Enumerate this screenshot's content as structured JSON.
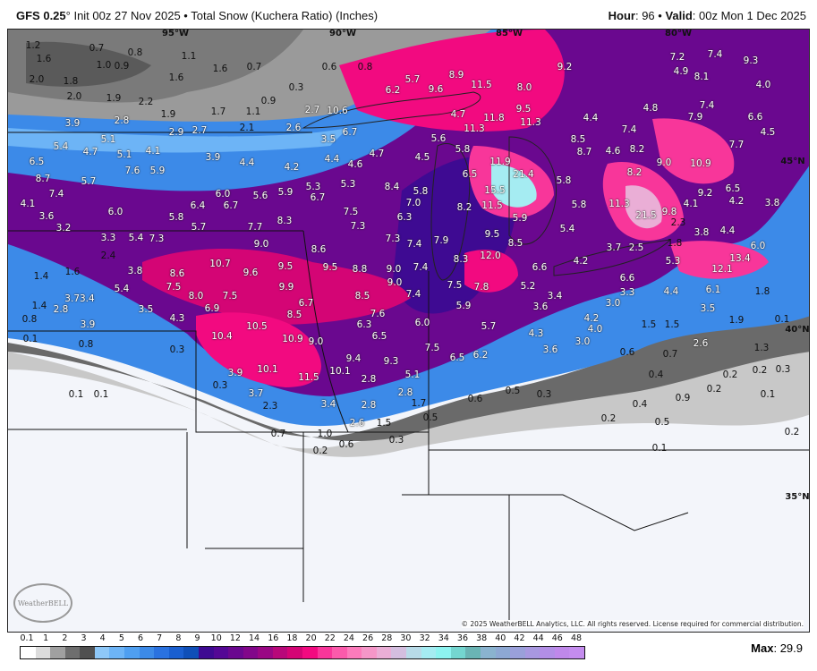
{
  "header": {
    "model": "GFS 0.25",
    "init": "° Init 00z 27 Nov 2025 • Total Snow (Kuchera Ratio) (Inches)",
    "hour_label": "Hour",
    "hour": ": 96 • ",
    "valid_label": "Valid",
    "valid": ": 00z Mon 1 Dec 2025"
  },
  "map": {
    "coords": [
      "95°W",
      "90°W",
      "85°W",
      "80°W",
      "45°N",
      "40°N",
      "35°N"
    ],
    "values": [
      "1.2",
      "1.6",
      "0.7",
      "1.0",
      "0.9",
      "0.8",
      "1.1",
      "1.6",
      "0.7",
      "0.6",
      "0.8",
      "0.3",
      "0.9",
      "1.1",
      "2.0",
      "1.8",
      "2.0",
      "1.9",
      "2.2",
      "1.6",
      "1.9",
      "1.7",
      "2.7",
      "2.1",
      "2.6",
      "2.9",
      "2.7",
      "3.9",
      "2.8",
      "5.4",
      "4.7",
      "5.1",
      "5.1",
      "4.1",
      "3.9",
      "4.4",
      "4.2",
      "3.5",
      "6.7",
      "4.4",
      "4.6",
      "4.7",
      "4.5",
      "5.6",
      "5.8",
      "6.5",
      "8.7",
      "5.7",
      "7.6",
      "5.9",
      "6.0",
      "5.6",
      "5.9",
      "5.3",
      "5.3",
      "8.4",
      "5.8",
      "6.5",
      "15.5",
      "11.9",
      "21.4",
      "5.8",
      "7.4",
      "4.1",
      "3.6",
      "6.0",
      "5.8",
      "6.4",
      "6.7",
      "6.7",
      "7.5",
      "7.0",
      "6.3",
      "8.2",
      "11.5",
      "5.9",
      "5.8",
      "3.2",
      "5.7",
      "7.7",
      "8.3",
      "7.3",
      "7.3",
      "7.4",
      "7.9",
      "9.5",
      "8.5",
      "5.4",
      "3.3",
      "5.4",
      "7.3",
      "9.0",
      "8.6",
      "2.4",
      "1.6",
      "3.8",
      "8.6",
      "10.7",
      "9.6",
      "9.5",
      "9.5",
      "8.8",
      "9.0",
      "7.4",
      "8.3",
      "12.0",
      "6.6",
      "1.4",
      "7.5",
      "9.9",
      "9.0",
      "7.5",
      "7.8",
      "5.2",
      "5.4",
      "8.0",
      "7.5",
      "6.7",
      "8.5",
      "7.4",
      "3.4",
      "3.73.4",
      "1.4",
      "2.8",
      "0.8",
      "3.5",
      "6.9",
      "8.5",
      "7.6",
      "5.9",
      "3.6",
      "4.3",
      "3.9",
      "10.5",
      "6.3",
      "6.0",
      "5.7",
      "4.2",
      "10.4",
      "10.9",
      "9.0",
      "6.5",
      "4.3",
      "4.0",
      "3.0",
      "0.1",
      "0.8",
      "0.3",
      "7.5",
      "3.6",
      "9.4",
      "9.3",
      "6.5",
      "6.2",
      "10.1",
      "3.9",
      "10.1",
      "11.5",
      "5.1",
      "0.3",
      "2.8",
      "3.7",
      "2.8",
      "0.5",
      "0.3",
      "0.1",
      "0.1",
      "2.3",
      "3.4",
      "2.8",
      "0.6",
      "1.7",
      "2.6",
      "1.5",
      "0.5",
      "0.7",
      "1.0",
      "0.6",
      "0.3",
      "0.2",
      "5.7",
      "6.2",
      "9.6",
      "8.9",
      "11.5",
      "8.0",
      "9.2",
      "7.2",
      "7.4",
      "9.3",
      "4.9",
      "8.1",
      "4.0",
      "10.6",
      "4.7",
      "11.8",
      "9.5",
      "11.3",
      "4.4",
      "4.8",
      "7.4",
      "7.9",
      "6.6",
      "11.3",
      "8.5",
      "8.7",
      "7.4",
      "4.5",
      "4.6",
      "8.2",
      "8.2",
      "9.0",
      "10.9",
      "7.7",
      "9.2",
      "6.5",
      "4.1",
      "4.2",
      "3.8",
      "11.3",
      "21.5",
      "9.8",
      "2.3",
      "3.8",
      "4.4",
      "1.8",
      "3.7",
      "2.5",
      "4.2",
      "5.3",
      "12.1",
      "13.4",
      "6.0",
      "6.6",
      "3.3",
      "3.0",
      "4.4",
      "6.1",
      "1.8",
      "3.5",
      "1.5",
      "1.5",
      "0.1",
      "1.9",
      "0.6",
      "2.6",
      "1.3",
      "0.7",
      "0.2",
      "0.2",
      "0.3",
      "0.4",
      "0.9",
      "0.2",
      "0.4",
      "0.1",
      "0.2",
      "0.5",
      "0.1",
      "0.2"
    ],
    "copyright": "© 2025 WeatherBELL Analytics, LLC. All rights reserved. License required for commercial distribution.",
    "logo": "WeatherBELL"
  },
  "legend": {
    "ticks": [
      "0.1",
      "1",
      "2",
      "3",
      "4",
      "5",
      "6",
      "7",
      "8",
      "9",
      "10",
      "12",
      "14",
      "16",
      "18",
      "20",
      "22",
      "24",
      "26",
      "28",
      "30",
      "32",
      "34",
      "36",
      "38",
      "40",
      "42",
      "44",
      "46",
      "48"
    ],
    "colors": [
      "#ffffff",
      "#dcdcdc",
      "#a0a0a0",
      "#6e6e6e",
      "#505050",
      "#8ec8f8",
      "#6db4f6",
      "#4f9ff0",
      "#3c8ae8",
      "#2a72e0",
      "#1a5fd0",
      "#0f4fb8",
      "#3e0a92",
      "#540895",
      "#6a088f",
      "#82078a",
      "#9a0784",
      "#b8087a",
      "#d40575",
      "#f20a80",
      "#f8369a",
      "#fb5aab",
      "#fc7bbb",
      "#f596c8",
      "#eaaed6",
      "#d4bedf",
      "#b8dbe8",
      "#a5ecf2",
      "#8df3f0",
      "#74d6d0",
      "#6ab4b4",
      "#8ab3cf",
      "#8da8d3",
      "#9aa0da",
      "#a898e0",
      "#b28ee6",
      "#bf88ea",
      "#c48cee"
    ],
    "max_label": "Max",
    "max_value": ": 29.9"
  }
}
